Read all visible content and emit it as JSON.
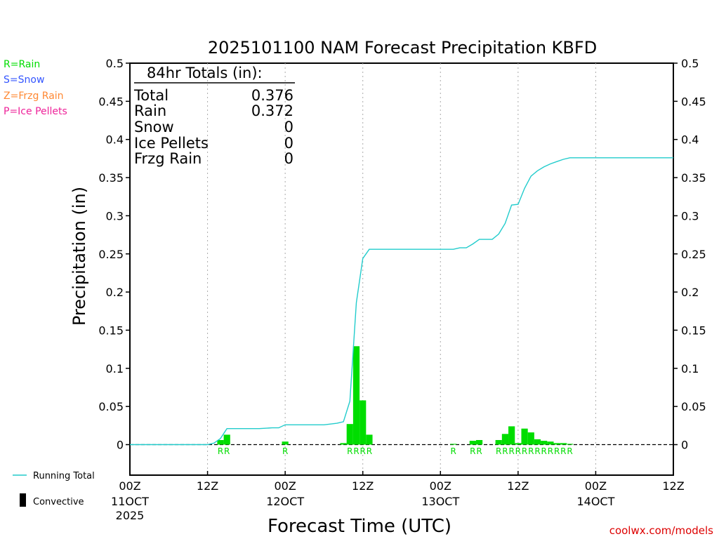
{
  "chart_data": {
    "type": "bar",
    "title": "2025101100 NAM Forecast Precipitation KBFD",
    "xlabel": "Forecast Time (UTC)",
    "ylabel": "Precipitation (in)",
    "ylim": [
      -0.04,
      0.5
    ],
    "xlim_hours": [
      0,
      84
    ],
    "y_ticks": [
      "0.5",
      "0.45",
      "0.4",
      "0.35",
      "0.3",
      "0.25",
      "0.2",
      "0.15",
      "0.1",
      "0.05",
      "0"
    ],
    "x_ticks": [
      {
        "hour": 0,
        "label": "00Z",
        "date": "11OCT",
        "year": "2025"
      },
      {
        "hour": 12,
        "label": "12Z",
        "date": "",
        "year": ""
      },
      {
        "hour": 24,
        "label": "00Z",
        "date": "12OCT",
        "year": ""
      },
      {
        "hour": 36,
        "label": "12Z",
        "date": "",
        "year": ""
      },
      {
        "hour": 48,
        "label": "00Z",
        "date": "13OCT",
        "year": ""
      },
      {
        "hour": 60,
        "label": "12Z",
        "date": "",
        "year": ""
      },
      {
        "hour": 72,
        "label": "00Z",
        "date": "14OCT",
        "year": ""
      },
      {
        "hour": 84,
        "label": "12Z",
        "date": "",
        "year": ""
      }
    ],
    "precip_type_legend": [
      {
        "code": "R=Rain",
        "color": "#00dd00"
      },
      {
        "code": "S=Snow",
        "color": "#3355ff"
      },
      {
        "code": "Z=Frzg Rain",
        "color": "#ff8833"
      },
      {
        "code": "P=Ice Pellets",
        "color": "#ee2299"
      }
    ],
    "series_legend": {
      "running_total": "Running Total",
      "convective": "Convective"
    },
    "totals": {
      "header": "84hr Totals (in):",
      "rows": [
        {
          "label": "Total",
          "value": "0.376"
        },
        {
          "label": "Rain",
          "value": "0.372"
        },
        {
          "label": "Snow",
          "value": "0"
        },
        {
          "label": "Ice Pellets",
          "value": "0"
        },
        {
          "label": "Frzg Rain",
          "value": "0"
        }
      ]
    },
    "bars": [
      {
        "hour": 14,
        "value": 0.006,
        "type": "R"
      },
      {
        "hour": 15,
        "value": 0.013,
        "type": "R"
      },
      {
        "hour": 24,
        "value": 0.004,
        "type": "R"
      },
      {
        "hour": 33,
        "value": 0.002,
        "type": ""
      },
      {
        "hour": 34,
        "value": 0.027,
        "type": "R"
      },
      {
        "hour": 35,
        "value": 0.129,
        "type": "R"
      },
      {
        "hour": 36,
        "value": 0.058,
        "type": "R"
      },
      {
        "hour": 37,
        "value": 0.013,
        "type": "R"
      },
      {
        "hour": 50,
        "value": 0.001,
        "type": "R"
      },
      {
        "hour": 53,
        "value": 0.005,
        "type": "R"
      },
      {
        "hour": 54,
        "value": 0.006,
        "type": "R"
      },
      {
        "hour": 57,
        "value": 0.006,
        "type": "R"
      },
      {
        "hour": 58,
        "value": 0.014,
        "type": "R"
      },
      {
        "hour": 59,
        "value": 0.024,
        "type": "R"
      },
      {
        "hour": 60,
        "value": 0.002,
        "type": "R"
      },
      {
        "hour": 61,
        "value": 0.021,
        "type": "R"
      },
      {
        "hour": 62,
        "value": 0.016,
        "type": "R"
      },
      {
        "hour": 63,
        "value": 0.007,
        "type": "R"
      },
      {
        "hour": 64,
        "value": 0.005,
        "type": "R"
      },
      {
        "hour": 65,
        "value": 0.004,
        "type": "R"
      },
      {
        "hour": 66,
        "value": 0.002,
        "type": "R"
      },
      {
        "hour": 67,
        "value": 0.002,
        "type": "R"
      },
      {
        "hour": 68,
        "value": 0.001,
        "type": "R"
      }
    ],
    "running_total": [
      [
        0,
        0
      ],
      [
        12,
        0
      ],
      [
        13,
        0.002
      ],
      [
        14,
        0.008
      ],
      [
        15,
        0.021
      ],
      [
        16,
        0.021
      ],
      [
        20,
        0.021
      ],
      [
        22,
        0.022
      ],
      [
        23,
        0.022
      ],
      [
        24,
        0.026
      ],
      [
        25,
        0.026
      ],
      [
        30,
        0.026
      ],
      [
        32,
        0.028
      ],
      [
        33,
        0.03
      ],
      [
        34,
        0.057
      ],
      [
        35,
        0.186
      ],
      [
        36,
        0.244
      ],
      [
        37,
        0.256
      ],
      [
        38,
        0.256
      ],
      [
        50,
        0.256
      ],
      [
        51,
        0.258
      ],
      [
        52,
        0.258
      ],
      [
        53,
        0.263
      ],
      [
        54,
        0.269
      ],
      [
        56,
        0.269
      ],
      [
        57,
        0.276
      ],
      [
        58,
        0.29
      ],
      [
        59,
        0.314
      ],
      [
        60,
        0.315
      ],
      [
        61,
        0.336
      ],
      [
        62,
        0.352
      ],
      [
        63,
        0.359
      ],
      [
        64,
        0.364
      ],
      [
        65,
        0.368
      ],
      [
        66,
        0.371
      ],
      [
        67,
        0.374
      ],
      [
        68,
        0.376
      ],
      [
        84,
        0.376
      ]
    ],
    "colors": {
      "rain_bar": "#00dd00",
      "running_total": "#22cccc",
      "grid": "#aaaaaa",
      "credit": "#dd0000"
    },
    "credit": "coolwx.com/models"
  }
}
